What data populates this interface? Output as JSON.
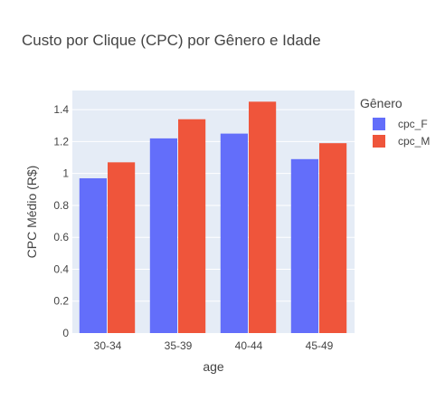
{
  "chart_data": {
    "type": "bar",
    "title": "Custo por Clique (CPC) por Gênero e Idade",
    "xlabel": "age",
    "ylabel": "CPC Médio (R$)",
    "categories": [
      "30-34",
      "35-39",
      "40-44",
      "45-49"
    ],
    "series": [
      {
        "name": "cpc_F",
        "values": [
          0.97,
          1.22,
          1.25,
          1.09
        ],
        "color": "#636efa"
      },
      {
        "name": "cpc_M",
        "values": [
          1.07,
          1.34,
          1.45,
          1.19
        ],
        "color": "#ef553b"
      }
    ],
    "ylim": [
      0,
      1.52
    ],
    "yticks": [
      0,
      0.2,
      0.4,
      0.6,
      0.8,
      1,
      1.2,
      1.4
    ],
    "ytick_labels": [
      "0",
      "0.2",
      "0.4",
      "0.6",
      "0.8",
      "1",
      "1.2",
      "1.4"
    ],
    "grid": true,
    "legend": {
      "title": "Gênero",
      "placement": "top-right"
    },
    "colors": {
      "plot_background": "#e5ecf6",
      "grid": "#ffffff",
      "text": "#444444"
    }
  }
}
